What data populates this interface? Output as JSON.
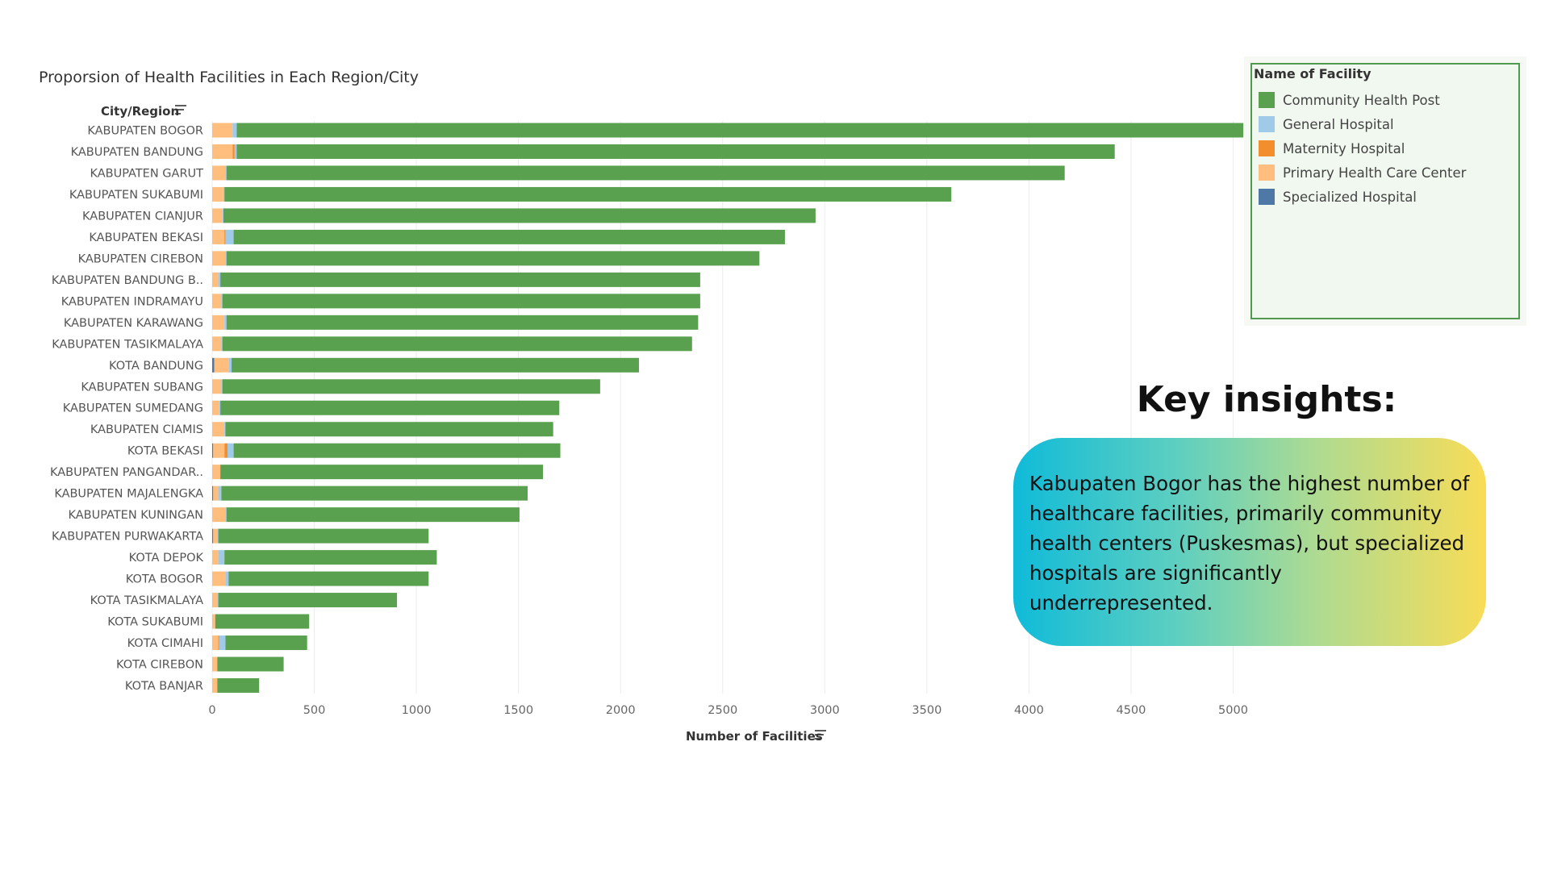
{
  "chart_data": {
    "type": "bar",
    "orientation": "horizontal",
    "stacked": true,
    "title": "Proporsion of Health Facilities in Each Region/City",
    "ylabel": "City/Region",
    "xlabel": "Number of Facilities",
    "xlim": [
      0,
      5200
    ],
    "xticks": [
      0,
      500,
      1000,
      1500,
      2000,
      2500,
      3000,
      3500,
      4000,
      4500,
      5000
    ],
    "grid": "vertical",
    "legend_title": "Name of Facility",
    "legend_position": "top-right",
    "categories": [
      "KABUPATEN BOGOR",
      "KABUPATEN BANDUNG",
      "KABUPATEN GARUT",
      "KABUPATEN SUKABUMI",
      "KABUPATEN CIANJUR",
      "KABUPATEN BEKASI",
      "KABUPATEN CIREBON",
      "KABUPATEN BANDUNG B..",
      "KABUPATEN INDRAMAYU",
      "KABUPATEN KARAWANG",
      "KABUPATEN TASIKMALAYA",
      "KOTA BANDUNG",
      "KABUPATEN SUBANG",
      "KABUPATEN SUMEDANG",
      "KABUPATEN CIAMIS",
      "KOTA BEKASI",
      "KABUPATEN PANGANDAR..",
      "KABUPATEN MAJALENGKA",
      "KABUPATEN KUNINGAN",
      "KABUPATEN PURWAKARTA",
      "KOTA DEPOK",
      "KOTA BOGOR",
      "KOTA TASIKMALAYA",
      "KOTA SUKABUMI",
      "KOTA CIMAHI",
      "KOTA CIREBON",
      "KOTA BANJAR"
    ],
    "series": [
      {
        "name": "Specialized Hospital",
        "color": "#4e79a7",
        "values": [
          0,
          0,
          0,
          0,
          0,
          0,
          0,
          0,
          0,
          0,
          0,
          10,
          0,
          0,
          0,
          5,
          0,
          5,
          0,
          5,
          0,
          0,
          0,
          0,
          0,
          0,
          0
        ]
      },
      {
        "name": "Primary Health Care Center",
        "color": "#ffbe7d",
        "values": [
          100,
          100,
          65,
          55,
          50,
          60,
          65,
          30,
          45,
          60,
          45,
          70,
          45,
          35,
          60,
          55,
          40,
          25,
          65,
          20,
          30,
          65,
          25,
          15,
          30,
          25,
          25
        ]
      },
      {
        "name": "Maternity Hospital",
        "color": "#f28e2b",
        "values": [
          0,
          10,
          0,
          0,
          0,
          5,
          0,
          0,
          0,
          0,
          0,
          0,
          0,
          0,
          0,
          15,
          0,
          0,
          0,
          0,
          0,
          0,
          0,
          0,
          5,
          0,
          0
        ]
      },
      {
        "name": "General Hospital",
        "color": "#a0cbe8",
        "values": [
          20,
          10,
          5,
          5,
          5,
          40,
          5,
          10,
          5,
          10,
          5,
          15,
          5,
          5,
          5,
          30,
          0,
          15,
          5,
          5,
          30,
          15,
          5,
          0,
          30,
          0,
          0
        ]
      },
      {
        "name": "Community Health Post",
        "color": "#59a14f",
        "values": [
          4930,
          4300,
          4105,
          3560,
          2900,
          2700,
          2610,
          2350,
          2340,
          2310,
          2300,
          1995,
          1850,
          1660,
          1605,
          1600,
          1580,
          1500,
          1435,
          1030,
          1040,
          980,
          875,
          460,
          400,
          325,
          205
        ]
      }
    ]
  },
  "legend": {
    "title": "Name of Facility",
    "items": [
      {
        "label": "Community Health Post",
        "color": "#59a14f"
      },
      {
        "label": "General Hospital",
        "color": "#a0cbe8"
      },
      {
        "label": "Maternity Hospital",
        "color": "#f28e2b"
      },
      {
        "label": "Primary Health Care Center",
        "color": "#ffbe7d"
      },
      {
        "label": "Specialized Hospital",
        "color": "#4e79a7"
      }
    ]
  },
  "insights": {
    "heading": "Key insights:",
    "text": "Kabupaten Bogor has the highest number of healthcare facilities, primarily community health centers (Puskesmas), but specialized hospitals are significantly underrepresented."
  }
}
